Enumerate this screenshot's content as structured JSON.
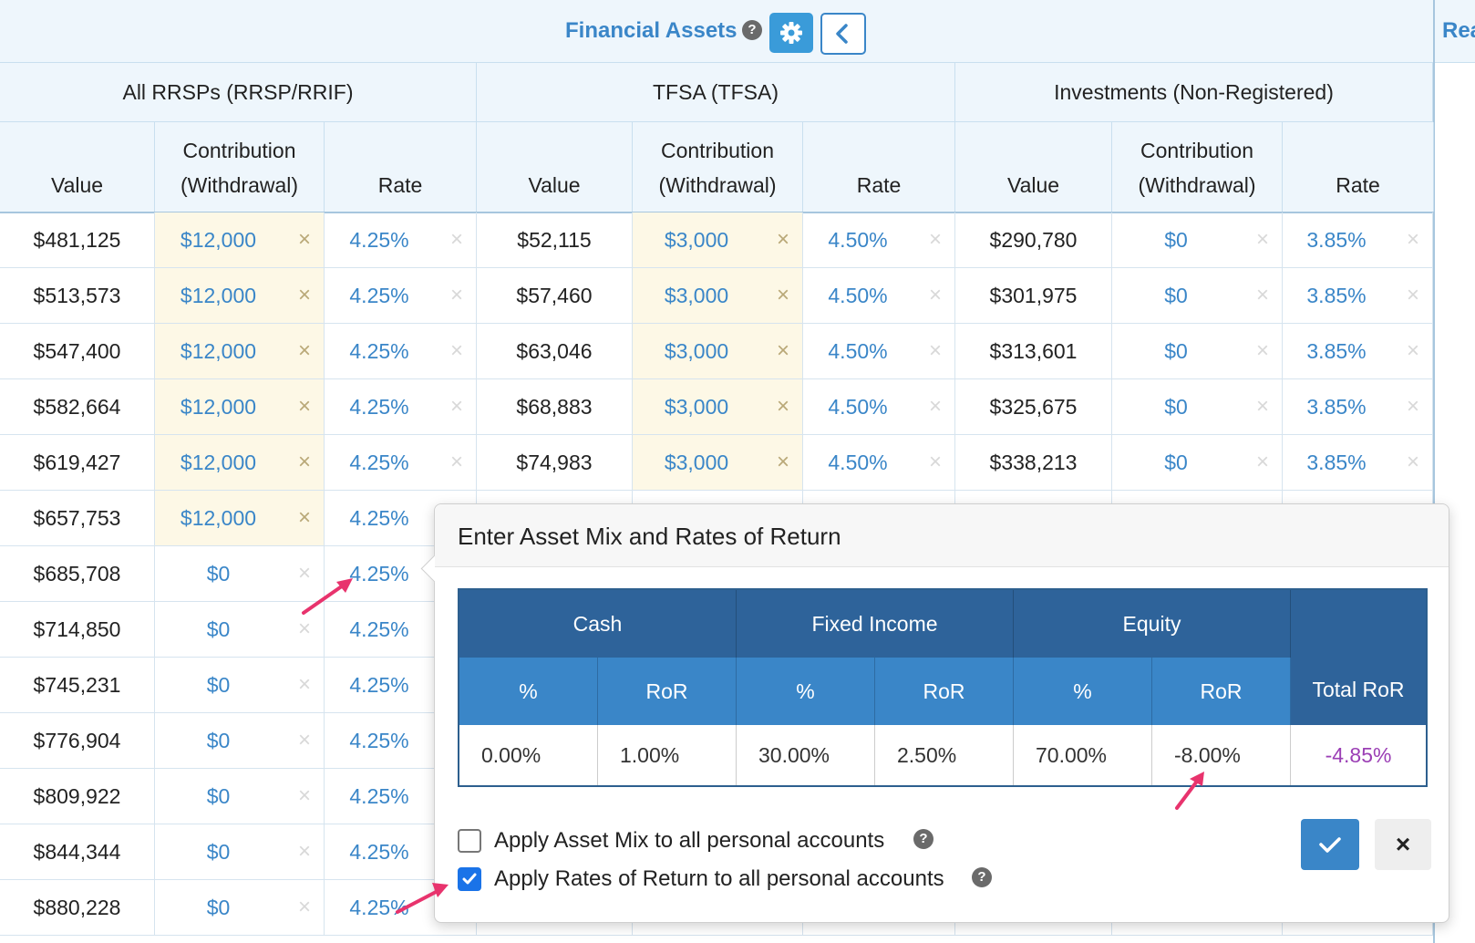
{
  "header": {
    "title": "Financial Assets",
    "help": "?",
    "next_section_title": "Rea"
  },
  "groups": [
    "All RRSPs (RRSP/RRIF)",
    "TFSA (TFSA)",
    "Investments (Non-Registered)"
  ],
  "columns": {
    "value": "Value",
    "contribution_l1": "Contribution",
    "contribution_l2": "(Withdrawal)",
    "rate": "Rate"
  },
  "rows": [
    {
      "rrsp_value": "$481,125",
      "rrsp_contrib": "$12,000",
      "rrsp_rate": "4.25%",
      "tfsa_value": "$52,115",
      "tfsa_contrib": "$3,000",
      "tfsa_rate": "4.50%",
      "inv_value": "$290,780",
      "inv_contrib": "$0",
      "inv_rate": "3.85%"
    },
    {
      "rrsp_value": "$513,573",
      "rrsp_contrib": "$12,000",
      "rrsp_rate": "4.25%",
      "tfsa_value": "$57,460",
      "tfsa_contrib": "$3,000",
      "tfsa_rate": "4.50%",
      "inv_value": "$301,975",
      "inv_contrib": "$0",
      "inv_rate": "3.85%"
    },
    {
      "rrsp_value": "$547,400",
      "rrsp_contrib": "$12,000",
      "rrsp_rate": "4.25%",
      "tfsa_value": "$63,046",
      "tfsa_contrib": "$3,000",
      "tfsa_rate": "4.50%",
      "inv_value": "$313,601",
      "inv_contrib": "$0",
      "inv_rate": "3.85%"
    },
    {
      "rrsp_value": "$582,664",
      "rrsp_contrib": "$12,000",
      "rrsp_rate": "4.25%",
      "tfsa_value": "$68,883",
      "tfsa_contrib": "$3,000",
      "tfsa_rate": "4.50%",
      "inv_value": "$325,675",
      "inv_contrib": "$0",
      "inv_rate": "3.85%"
    },
    {
      "rrsp_value": "$619,427",
      "rrsp_contrib": "$12,000",
      "rrsp_rate": "4.25%",
      "tfsa_value": "$74,983",
      "tfsa_contrib": "$3,000",
      "tfsa_rate": "4.50%",
      "inv_value": "$338,213",
      "inv_contrib": "$0",
      "inv_rate": "3.85%"
    },
    {
      "rrsp_value": "$657,753",
      "rrsp_contrib": "$12,000",
      "rrsp_rate": "4.25%"
    },
    {
      "rrsp_value": "$685,708",
      "rrsp_contrib": "$0",
      "rrsp_rate": "4.25%"
    },
    {
      "rrsp_value": "$714,850",
      "rrsp_contrib": "$0",
      "rrsp_rate": "4.25%"
    },
    {
      "rrsp_value": "$745,231",
      "rrsp_contrib": "$0",
      "rrsp_rate": "4.25%"
    },
    {
      "rrsp_value": "$776,904",
      "rrsp_contrib": "$0",
      "rrsp_rate": "4.25%"
    },
    {
      "rrsp_value": "$809,922",
      "rrsp_contrib": "$0",
      "rrsp_rate": "4.25%"
    },
    {
      "rrsp_value": "$844,344",
      "rrsp_contrib": "$0",
      "rrsp_rate": "4.25%"
    },
    {
      "rrsp_value": "$880,228",
      "rrsp_contrib": "$0",
      "rrsp_rate": "4.25%"
    }
  ],
  "clear_glyph": "×",
  "popup": {
    "title": "Enter Asset Mix and Rates of Return",
    "groups": [
      "Cash",
      "Fixed Income",
      "Equity"
    ],
    "subheaders": [
      "%",
      "RoR",
      "%",
      "RoR",
      "%",
      "RoR"
    ],
    "total_header": "Total RoR",
    "values": [
      "0.00%",
      "1.00%",
      "30.00%",
      "2.50%",
      "70.00%",
      "-8.00%"
    ],
    "total_value": "-4.85%",
    "apply_mix_label": "Apply Asset Mix to all personal accounts",
    "apply_mix_checked": false,
    "apply_rates_label": "Apply Rates of Return to all personal accounts",
    "apply_rates_checked": true,
    "cancel_label": "×"
  },
  "colors": {
    "accent": "#3a86c8",
    "table_header_dark": "#2e639a",
    "total_ror": "#9b3fb5",
    "annotation_arrow": "#e8336d"
  }
}
